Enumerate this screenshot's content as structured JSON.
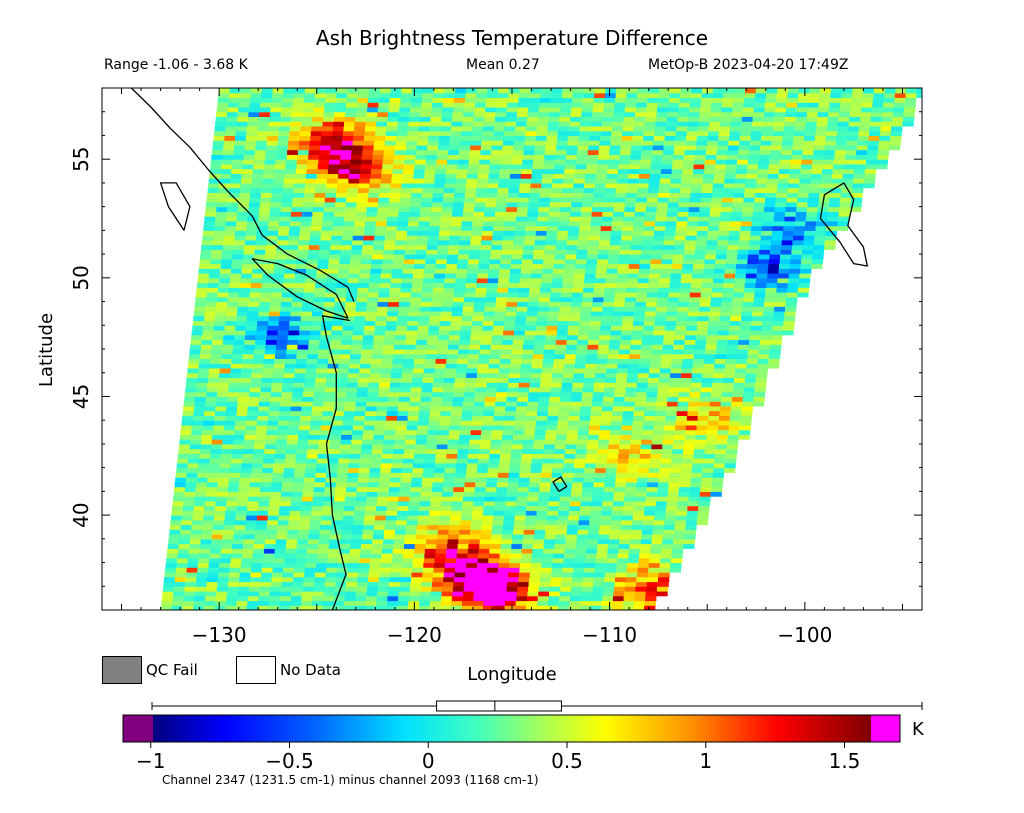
{
  "header": {
    "title": "Ash Brightness Temperature Difference",
    "range_text": "Range -1.06 - 3.68 K",
    "mean_text": "Mean 0.27",
    "satellite_text": "MetOp-B 2023-04-20 17:49Z"
  },
  "legend": {
    "qc_fail_label": "QC Fail",
    "no_data_label": "No Data",
    "qc_fail_color": "#808080",
    "no_data_color": "#ffffff"
  },
  "colorbar": {
    "unit": "K",
    "caption": "Channel 2347 (1231.5 cm-1) minus channel 2093 (1168 cm-1)",
    "ticks": [
      "-1",
      "-0.5",
      "0",
      "0.5",
      "1",
      "1.5"
    ],
    "range": [
      -1.1,
      1.7
    ],
    "under_color": "#800080",
    "over_color": "#ff00ff",
    "boxplot": {
      "whisker_min": -1.06,
      "q1": 0.03,
      "median": 0.24,
      "q3": 0.48,
      "whisker_max": 3.68
    }
  },
  "chart_data": {
    "type": "heatmap",
    "title": "Ash Brightness Temperature Difference",
    "xlabel": "Longitude",
    "ylabel": "Latitude",
    "xlim": [
      -136,
      -94
    ],
    "ylim": [
      36,
      58
    ],
    "xticks": [
      "-130",
      "-120",
      "-110",
      "-100"
    ],
    "yticks": [
      "40",
      "45",
      "50",
      "55"
    ],
    "value_unit": "K",
    "value_range": [
      -1.06,
      3.68
    ],
    "mean": 0.27,
    "swath": {
      "left_edge": [
        [
          -133,
          36
        ],
        [
          -130,
          58
        ]
      ],
      "right_edge": [
        [
          -108,
          36
        ],
        [
          -104,
          42
        ],
        [
          -100,
          50
        ],
        [
          -96,
          55
        ],
        [
          -94,
          58
        ]
      ]
    },
    "hot_spots": [
      {
        "lon": -124.5,
        "lat": 55.5,
        "value": 1.8,
        "label": ""
      },
      {
        "lon": -123,
        "lat": 54.5,
        "value": 1.3,
        "label": ""
      },
      {
        "lon": -118.5,
        "lat": 38.5,
        "value": 1.4,
        "label": ""
      },
      {
        "lon": -117,
        "lat": 37.2,
        "value": 1.9,
        "label": ""
      },
      {
        "lon": -116,
        "lat": 36.6,
        "value": 1.7,
        "label": ""
      },
      {
        "lon": -108,
        "lat": 36.7,
        "value": 1.4,
        "label": ""
      },
      {
        "lon": -109,
        "lat": 42.5,
        "value": 0.9,
        "label": ""
      },
      {
        "lon": -105,
        "lat": 44.0,
        "value": 0.8,
        "label": ""
      }
    ],
    "cold_spots": [
      {
        "lon": -102,
        "lat": 50.3,
        "value": -0.9
      },
      {
        "lon": -127,
        "lat": 47.5,
        "value": -0.8
      },
      {
        "lon": -101,
        "lat": 52.0,
        "value": -0.6
      }
    ]
  }
}
